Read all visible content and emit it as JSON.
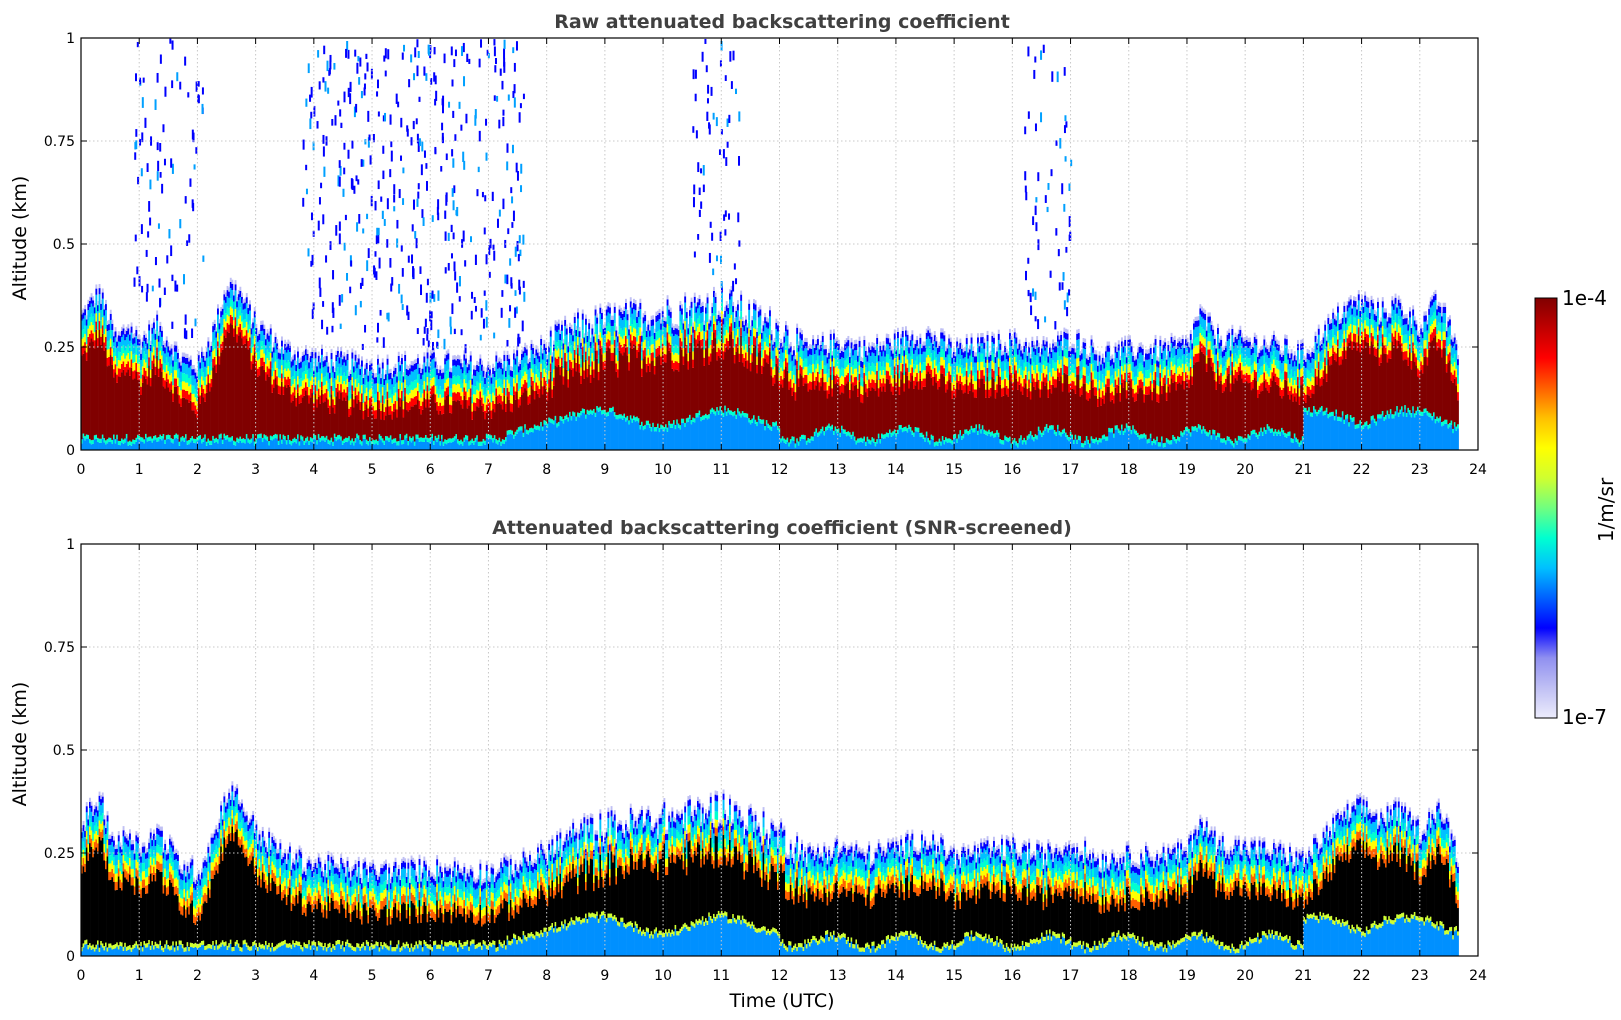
{
  "chart_data": [
    {
      "type": "heatmap",
      "title": "Raw attenuated backscattering coefficient",
      "xlabel": "",
      "ylabel": "Altitude (km)",
      "xlim": [
        0,
        24
      ],
      "ylim": [
        0,
        1
      ],
      "x_ticks": [
        "0",
        "1",
        "2",
        "3",
        "4",
        "5",
        "6",
        "7",
        "8",
        "9",
        "10",
        "11",
        "12",
        "13",
        "14",
        "15",
        "16",
        "17",
        "18",
        "19",
        "20",
        "21",
        "22",
        "23",
        "24"
      ],
      "y_ticks": [
        "0",
        "0.25",
        "0.5",
        "0.75",
        "1"
      ],
      "grid": true,
      "data_end_time": 23.65,
      "layer_top_km": {
        "time": [
          0,
          0.3,
          0.6,
          0.8,
          1.0,
          1.3,
          1.7,
          2.0,
          2.3,
          2.5,
          2.7,
          3.0,
          3.5,
          4,
          5,
          6,
          7,
          7.5,
          8,
          8.5,
          9,
          9.5,
          10,
          10.5,
          11,
          11.5,
          12,
          12.5,
          13,
          13.5,
          14,
          14.5,
          15,
          15.5,
          16,
          16.5,
          17,
          17.5,
          18,
          18.5,
          19,
          19.2,
          19.5,
          20,
          20.5,
          21,
          21.3,
          21.7,
          22,
          22.3,
          22.6,
          23,
          23.3,
          23.65
        ],
        "top": [
          0.32,
          0.38,
          0.26,
          0.3,
          0.26,
          0.3,
          0.22,
          0.2,
          0.3,
          0.4,
          0.38,
          0.3,
          0.24,
          0.22,
          0.2,
          0.21,
          0.2,
          0.22,
          0.25,
          0.29,
          0.31,
          0.32,
          0.33,
          0.34,
          0.36,
          0.32,
          0.29,
          0.24,
          0.26,
          0.24,
          0.26,
          0.28,
          0.24,
          0.25,
          0.26,
          0.24,
          0.27,
          0.23,
          0.24,
          0.24,
          0.25,
          0.33,
          0.27,
          0.26,
          0.25,
          0.23,
          0.28,
          0.34,
          0.36,
          0.33,
          0.35,
          0.3,
          0.36,
          0.24
        ]
      }
    },
    {
      "type": "heatmap",
      "title": "Attenuated backscattering coefficient (SNR-screened)",
      "xlabel": "Time (UTC)",
      "ylabel": "Altitude (km)",
      "xlim": [
        0,
        24
      ],
      "ylim": [
        0,
        1
      ],
      "x_ticks": [
        "0",
        "1",
        "2",
        "3",
        "4",
        "5",
        "6",
        "7",
        "8",
        "9",
        "10",
        "11",
        "12",
        "13",
        "14",
        "15",
        "16",
        "17",
        "18",
        "19",
        "20",
        "21",
        "22",
        "23",
        "24"
      ],
      "y_ticks": [
        "0",
        "0.25",
        "0.5",
        "0.75",
        "1"
      ],
      "grid": true
    }
  ],
  "colorbar": {
    "max_label": "1e-4",
    "min_label": "1e-7",
    "unit_label": "1/m/sr",
    "colors": [
      "#ececfc",
      "#c0c0f4",
      "#9090f0",
      "#0000ff",
      "#0060ff",
      "#00c0ff",
      "#00ffd0",
      "#70ff80",
      "#d0ff30",
      "#ffff00",
      "#ffc000",
      "#ff6000",
      "#ff0000",
      "#c00000",
      "#800000"
    ]
  }
}
